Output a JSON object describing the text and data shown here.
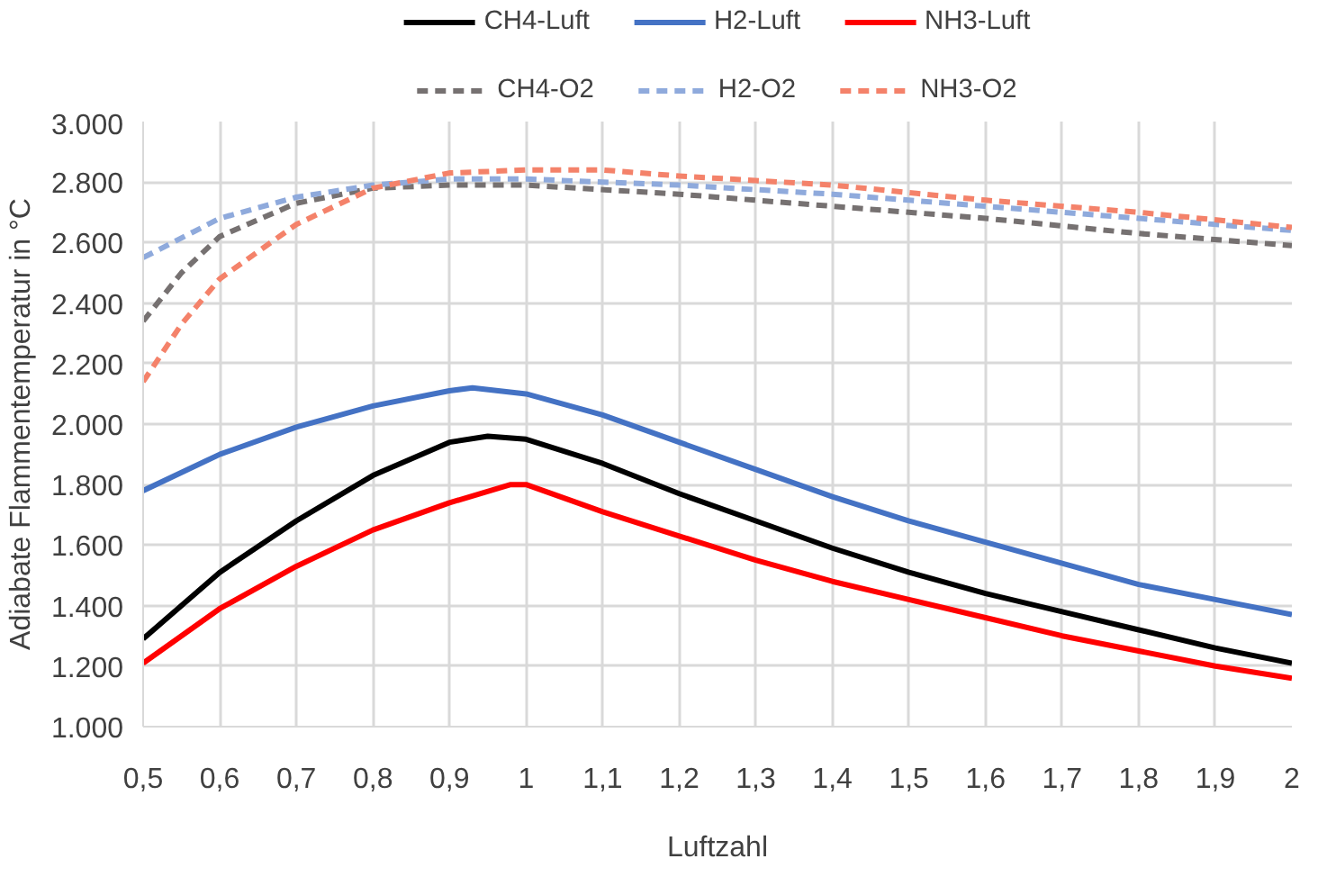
{
  "chart_data": {
    "type": "line",
    "xlabel": "Luftzahl",
    "ylabel": "Adiabate Flammentemperatur in °C",
    "xlim": [
      0.5,
      2
    ],
    "ylim": [
      1000,
      3000
    ],
    "xticks": [
      {
        "value": 0.5,
        "label": "0,5"
      },
      {
        "value": 0.6,
        "label": "0,6"
      },
      {
        "value": 0.7,
        "label": "0,7"
      },
      {
        "value": 0.8,
        "label": "0,8"
      },
      {
        "value": 0.9,
        "label": "0,9"
      },
      1,
      {
        "value": 1.1,
        "label": "1,1"
      },
      {
        "value": 1.2,
        "label": "1,2"
      },
      {
        "value": 1.3,
        "label": "1,3"
      },
      {
        "value": 1.4,
        "label": "1,4"
      },
      {
        "value": 1.5,
        "label": "1,5"
      },
      {
        "value": 1.6,
        "label": "1,6"
      },
      {
        "value": 1.7,
        "label": "1,7"
      },
      {
        "value": 1.8,
        "label": "1,8"
      },
      {
        "value": 1.9,
        "label": "1,9"
      },
      2
    ],
    "yticks": [
      {
        "value": 1000,
        "label": "1.000"
      },
      {
        "value": 1200,
        "label": "1.200"
      },
      {
        "value": 1400,
        "label": "1.400"
      },
      {
        "value": 1600,
        "label": "1.600"
      },
      {
        "value": 1800,
        "label": "1.800"
      },
      {
        "value": 2000,
        "label": "2.000"
      },
      {
        "value": 2200,
        "label": "2.200"
      },
      {
        "value": 2400,
        "label": "2.400"
      },
      {
        "value": 2600,
        "label": "2.600"
      },
      {
        "value": 2800,
        "label": "2.800"
      },
      {
        "value": 3000,
        "label": "3.000"
      }
    ],
    "grid": true,
    "legend": "top",
    "marker": "none",
    "series": [
      {
        "name": "CH4-Luft",
        "color": "#000000",
        "line_style": "solid",
        "x": [
          0.5,
          0.6,
          0.7,
          0.8,
          0.9,
          0.95,
          1.0,
          1.1,
          1.2,
          1.3,
          1.4,
          1.5,
          1.6,
          1.7,
          1.8,
          1.9,
          2.0
        ],
        "values": [
          1290,
          1510,
          1680,
          1830,
          1940,
          1960,
          1950,
          1870,
          1770,
          1680,
          1590,
          1510,
          1440,
          1380,
          1320,
          1260,
          1210
        ]
      },
      {
        "name": "H2-Luft",
        "color": "#4472c4",
        "line_style": "solid",
        "x": [
          0.5,
          0.6,
          0.7,
          0.8,
          0.9,
          0.93,
          1.0,
          1.1,
          1.2,
          1.3,
          1.4,
          1.5,
          1.6,
          1.7,
          1.8,
          1.9,
          2.0
        ],
        "values": [
          1780,
          1900,
          1990,
          2060,
          2110,
          2120,
          2100,
          2030,
          1940,
          1850,
          1760,
          1680,
          1610,
          1540,
          1470,
          1420,
          1370
        ]
      },
      {
        "name": "NH3-Luft",
        "color": "#ff0000",
        "line_style": "solid",
        "x": [
          0.5,
          0.6,
          0.7,
          0.8,
          0.9,
          0.98,
          1.0,
          1.1,
          1.2,
          1.3,
          1.4,
          1.5,
          1.6,
          1.7,
          1.8,
          1.9,
          2.0
        ],
        "values": [
          1210,
          1390,
          1530,
          1650,
          1740,
          1800,
          1800,
          1710,
          1630,
          1550,
          1480,
          1420,
          1360,
          1300,
          1250,
          1200,
          1160
        ]
      },
      {
        "name": "CH4-O2",
        "color": "#767171",
        "line_style": "dashed",
        "x": [
          0.5,
          0.55,
          0.6,
          0.7,
          0.8,
          0.9,
          1.0,
          1.2,
          1.4,
          1.6,
          1.8,
          2.0
        ],
        "values": [
          2340,
          2500,
          2620,
          2730,
          2780,
          2790,
          2790,
          2760,
          2720,
          2680,
          2630,
          2590
        ]
      },
      {
        "name": "H2-O2",
        "color": "#8faadc",
        "line_style": "dashed",
        "x": [
          0.5,
          0.6,
          0.7,
          0.8,
          0.9,
          1.0,
          1.2,
          1.4,
          1.6,
          1.8,
          2.0
        ],
        "values": [
          2550,
          2680,
          2750,
          2790,
          2810,
          2810,
          2790,
          2760,
          2720,
          2680,
          2640
        ]
      },
      {
        "name": "NH3-O2",
        "color": "#f4826a",
        "line_style": "dashed",
        "x": [
          0.5,
          0.55,
          0.6,
          0.7,
          0.8,
          0.9,
          1.0,
          1.1,
          1.2,
          1.4,
          1.6,
          1.8,
          2.0
        ],
        "values": [
          2140,
          2330,
          2480,
          2660,
          2780,
          2830,
          2840,
          2840,
          2820,
          2790,
          2740,
          2700,
          2650
        ]
      }
    ]
  }
}
